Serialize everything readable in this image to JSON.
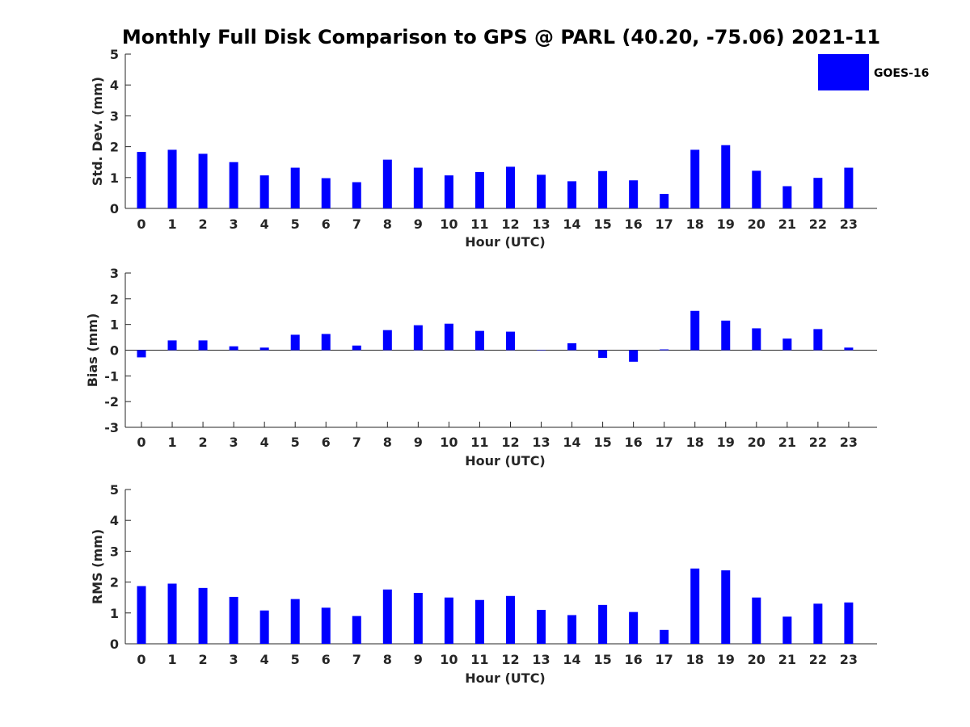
{
  "title": "Monthly Full Disk Comparison to GPS @ PARL (40.20, -75.06) 2021-11",
  "legend": {
    "label": "GOES-16",
    "color": "#0000ff"
  },
  "chart_data": [
    {
      "type": "bar",
      "name": "std-dev",
      "categories": [
        "0",
        "1",
        "2",
        "3",
        "4",
        "5",
        "6",
        "7",
        "8",
        "9",
        "10",
        "11",
        "12",
        "13",
        "14",
        "15",
        "16",
        "17",
        "18",
        "19",
        "20",
        "21",
        "22",
        "23"
      ],
      "series": [
        {
          "name": "GOES-16",
          "values": [
            1.83,
            1.9,
            1.77,
            1.5,
            1.07,
            1.32,
            0.98,
            0.85,
            1.58,
            1.32,
            1.07,
            1.18,
            1.35,
            1.09,
            0.88,
            1.21,
            0.91,
            0.47,
            1.9,
            2.05,
            1.22,
            0.72,
            0.99,
            1.32
          ]
        }
      ],
      "xlabel": "Hour (UTC)",
      "ylabel": "Std. Dev. (mm)",
      "ylim": [
        0,
        5
      ],
      "yticks": [
        "0",
        "1",
        "2",
        "3",
        "4",
        "5"
      ],
      "grid": false
    },
    {
      "type": "bar",
      "name": "bias",
      "categories": [
        "0",
        "1",
        "2",
        "3",
        "4",
        "5",
        "6",
        "7",
        "8",
        "9",
        "10",
        "11",
        "12",
        "13",
        "14",
        "15",
        "16",
        "17",
        "18",
        "19",
        "20",
        "21",
        "22",
        "23"
      ],
      "series": [
        {
          "name": "GOES-16",
          "values": [
            -0.28,
            0.38,
            0.38,
            0.15,
            0.1,
            0.6,
            0.63,
            0.18,
            0.78,
            0.97,
            1.03,
            0.75,
            0.72,
            0.0,
            0.27,
            -0.3,
            -0.45,
            0.03,
            1.53,
            1.15,
            0.85,
            0.45,
            0.82,
            0.1
          ]
        }
      ],
      "xlabel": "Hour (UTC)",
      "ylabel": "Bias (mm)",
      "ylim": [
        -3,
        3
      ],
      "yticks": [
        "-3",
        "-2",
        "-1",
        "0",
        "1",
        "2",
        "3"
      ],
      "grid": false
    },
    {
      "type": "bar",
      "name": "rms",
      "categories": [
        "0",
        "1",
        "2",
        "3",
        "4",
        "5",
        "6",
        "7",
        "8",
        "9",
        "10",
        "11",
        "12",
        "13",
        "14",
        "15",
        "16",
        "17",
        "18",
        "19",
        "20",
        "21",
        "22",
        "23"
      ],
      "series": [
        {
          "name": "GOES-16",
          "values": [
            1.87,
            1.95,
            1.81,
            1.52,
            1.08,
            1.45,
            1.17,
            0.9,
            1.76,
            1.65,
            1.5,
            1.42,
            1.55,
            1.1,
            0.93,
            1.26,
            1.03,
            0.45,
            2.44,
            2.38,
            1.5,
            0.88,
            1.3,
            1.34
          ]
        }
      ],
      "xlabel": "Hour (UTC)",
      "ylabel": "RMS (mm)",
      "ylim": [
        0,
        5
      ],
      "yticks": [
        "0",
        "1",
        "2",
        "3",
        "4",
        "5"
      ],
      "grid": false
    }
  ]
}
